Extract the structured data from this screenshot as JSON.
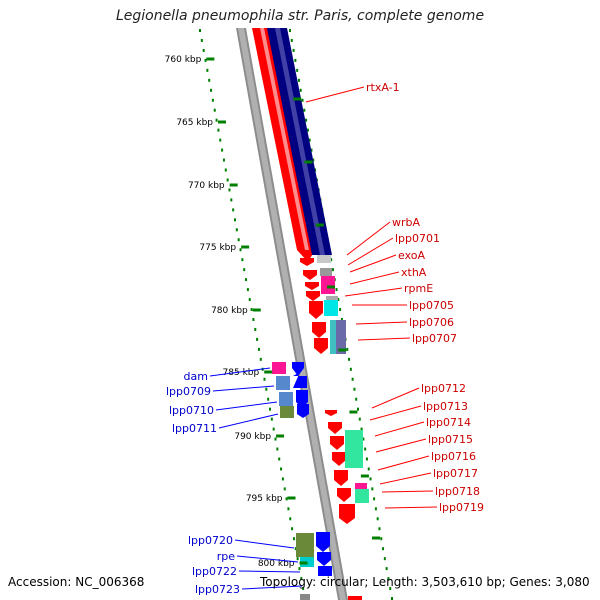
{
  "title": "Legionella pneumophila str. Paris, complete genome",
  "footer": {
    "accession": "Accession: NC_006368",
    "topology": "Topology: circular; Length: 3,503,610 bp; Genes: 3,080"
  },
  "colors": {
    "forward_strand": "#ff0000",
    "reverse_strand": "#000080",
    "backbone": "#999999",
    "tick": "#008000",
    "label_forward": "#cc0000",
    "label_reverse": "#0000cc",
    "leader_forward": "#ff0000",
    "leader_reverse": "#0000ff"
  },
  "ticks": [
    {
      "label": "760 kbp"
    },
    {
      "label": "765 kbp"
    },
    {
      "label": "770 kbp"
    },
    {
      "label": "775 kbp"
    },
    {
      "label": "780 kbp"
    },
    {
      "label": "785 kbp"
    },
    {
      "label": "790 kbp"
    },
    {
      "label": "795 kbp"
    },
    {
      "label": "800 kbp"
    }
  ],
  "genes_right": [
    {
      "label": "rtxA-1"
    },
    {
      "label": "wrbA"
    },
    {
      "label": "lpp0701"
    },
    {
      "label": "exoA"
    },
    {
      "label": "xthA"
    },
    {
      "label": "rpmE"
    },
    {
      "label": "lpp0705"
    },
    {
      "label": "lpp0706"
    },
    {
      "label": "lpp0707"
    },
    {
      "label": "lpp0712"
    },
    {
      "label": "lpp0713"
    },
    {
      "label": "lpp0714"
    },
    {
      "label": "lpp0715"
    },
    {
      "label": "lpp0716"
    },
    {
      "label": "lpp0717"
    },
    {
      "label": "lpp0718"
    },
    {
      "label": "lpp0719"
    }
  ],
  "genes_left": [
    {
      "label": "dam"
    },
    {
      "label": "lpp0709"
    },
    {
      "label": "lpp0710"
    },
    {
      "label": "lpp0711"
    },
    {
      "label": "lpp0720"
    },
    {
      "label": "rpe"
    },
    {
      "label": "lpp0722"
    },
    {
      "label": "lpp0723"
    }
  ]
}
